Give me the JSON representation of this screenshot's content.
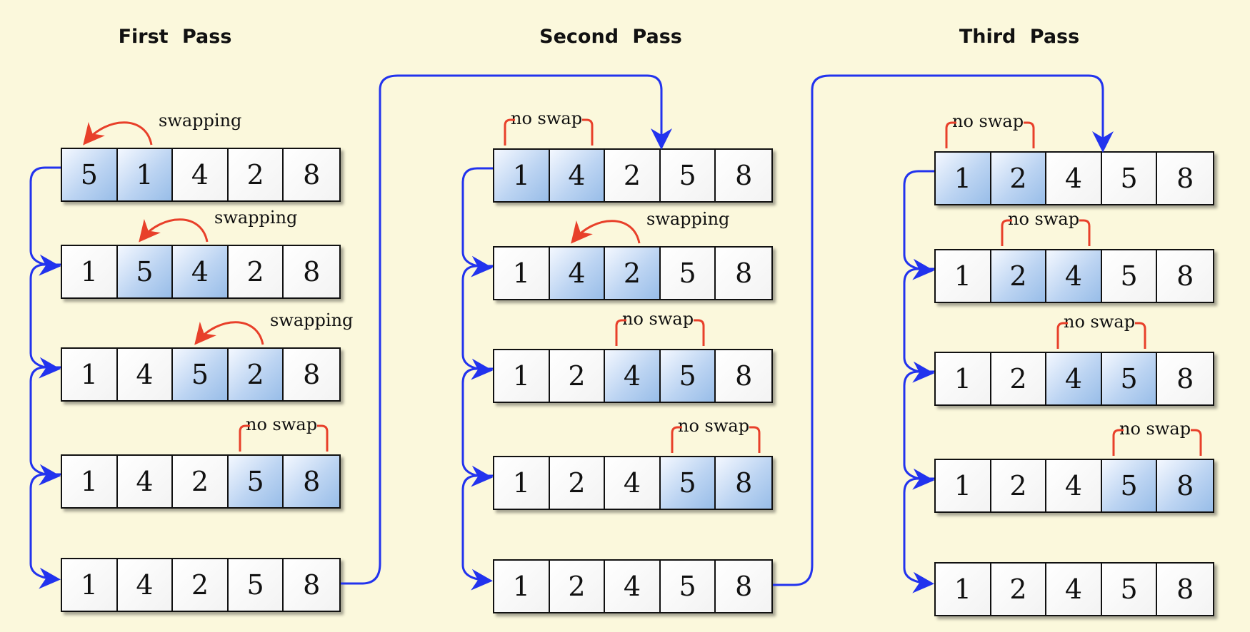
{
  "passes": [
    {
      "title": "First Pass",
      "rows": [
        {
          "values": [
            "5",
            "1",
            "4",
            "2",
            "8"
          ],
          "highlight": [
            0,
            1
          ],
          "annotation": "swapping",
          "kind": "swap"
        },
        {
          "values": [
            "1",
            "5",
            "4",
            "2",
            "8"
          ],
          "highlight": [
            1,
            2
          ],
          "annotation": "swapping",
          "kind": "swap"
        },
        {
          "values": [
            "1",
            "4",
            "5",
            "2",
            "8"
          ],
          "highlight": [
            2,
            3
          ],
          "annotation": "swapping",
          "kind": "swap"
        },
        {
          "values": [
            "1",
            "4",
            "2",
            "5",
            "8"
          ],
          "highlight": [
            3,
            4
          ],
          "annotation": "no swap",
          "kind": "noswap"
        },
        {
          "values": [
            "1",
            "4",
            "2",
            "5",
            "8"
          ],
          "highlight": [],
          "annotation": "",
          "kind": "none"
        }
      ]
    },
    {
      "title": "Second Pass",
      "rows": [
        {
          "values": [
            "1",
            "4",
            "2",
            "5",
            "8"
          ],
          "highlight": [
            0,
            1
          ],
          "annotation": "no swap",
          "kind": "noswap"
        },
        {
          "values": [
            "1",
            "4",
            "2",
            "5",
            "8"
          ],
          "highlight": [
            1,
            2
          ],
          "annotation": "swapping",
          "kind": "swap"
        },
        {
          "values": [
            "1",
            "2",
            "4",
            "5",
            "8"
          ],
          "highlight": [
            2,
            3
          ],
          "annotation": "no swap",
          "kind": "noswap"
        },
        {
          "values": [
            "1",
            "2",
            "4",
            "5",
            "8"
          ],
          "highlight": [
            3,
            4
          ],
          "annotation": "no swap",
          "kind": "noswap"
        },
        {
          "values": [
            "1",
            "2",
            "4",
            "5",
            "8"
          ],
          "highlight": [],
          "annotation": "",
          "kind": "none"
        }
      ]
    },
    {
      "title": "Third Pass",
      "rows": [
        {
          "values": [
            "1",
            "2",
            "4",
            "5",
            "8"
          ],
          "highlight": [
            0,
            1
          ],
          "annotation": "no swap",
          "kind": "noswap"
        },
        {
          "values": [
            "1",
            "2",
            "4",
            "5",
            "8"
          ],
          "highlight": [
            1,
            2
          ],
          "annotation": "no swap",
          "kind": "noswap"
        },
        {
          "values": [
            "1",
            "2",
            "4",
            "5",
            "8"
          ],
          "highlight": [
            2,
            3
          ],
          "annotation": "no swap",
          "kind": "noswap"
        },
        {
          "values": [
            "1",
            "2",
            "4",
            "5",
            "8"
          ],
          "highlight": [
            3,
            4
          ],
          "annotation": "no swap",
          "kind": "noswap"
        },
        {
          "values": [
            "1",
            "2",
            "4",
            "5",
            "8"
          ],
          "highlight": [],
          "annotation": "",
          "kind": "none"
        }
      ]
    }
  ],
  "colors": {
    "background": "#fbf8dc",
    "flow_arrow": "#2233ee",
    "annotation_arrow": "#e8402a",
    "highlight_cell": "#a9c8ec"
  }
}
